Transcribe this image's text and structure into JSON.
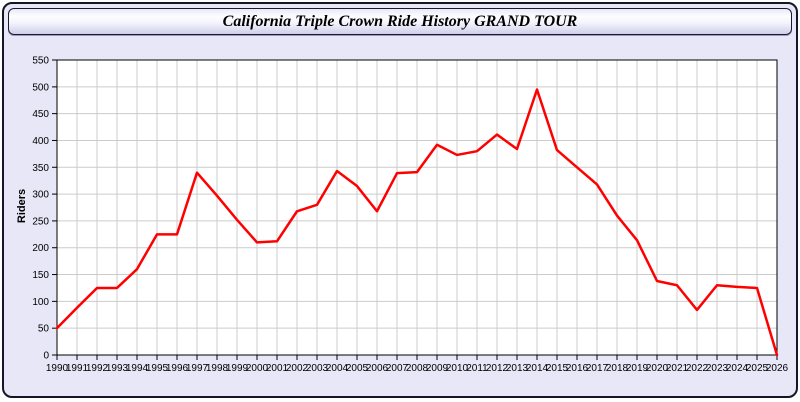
{
  "window": {
    "title": "California Triple Crown Ride History GRAND TOUR"
  },
  "colors": {
    "background": "#E7E7F7",
    "plot_background": "#FFFFFF",
    "grid": "#CCCCCC",
    "axis": "#000000",
    "border": "#15152A",
    "line": "#FF0000"
  },
  "chart_data": {
    "type": "line",
    "title": "California Triple Crown Ride History GRAND TOUR",
    "xlabel": "",
    "ylabel": "Riders",
    "ylim": [
      0,
      550
    ],
    "ytick_step": 50,
    "grid": true,
    "legend_position": "none",
    "line_color": "#FF0000",
    "categories": [
      1990,
      1991,
      1992,
      1993,
      1994,
      1995,
      1996,
      1997,
      1998,
      1999,
      2000,
      2001,
      2002,
      2003,
      2004,
      2005,
      2006,
      2007,
      2008,
      2009,
      2010,
      2011,
      2012,
      2013,
      2014,
      2015,
      2016,
      2017,
      2018,
      2019,
      2020,
      2021,
      2022,
      2023,
      2024,
      2025,
      2026
    ],
    "values": [
      50,
      88,
      125,
      125,
      160,
      225,
      225,
      340,
      297,
      252,
      210,
      212,
      268,
      280,
      343,
      315,
      268,
      339,
      341,
      392,
      373,
      380,
      411,
      384,
      495,
      382,
      350,
      318,
      260,
      214,
      138,
      130,
      84,
      130,
      127,
      125,
      0
    ]
  }
}
